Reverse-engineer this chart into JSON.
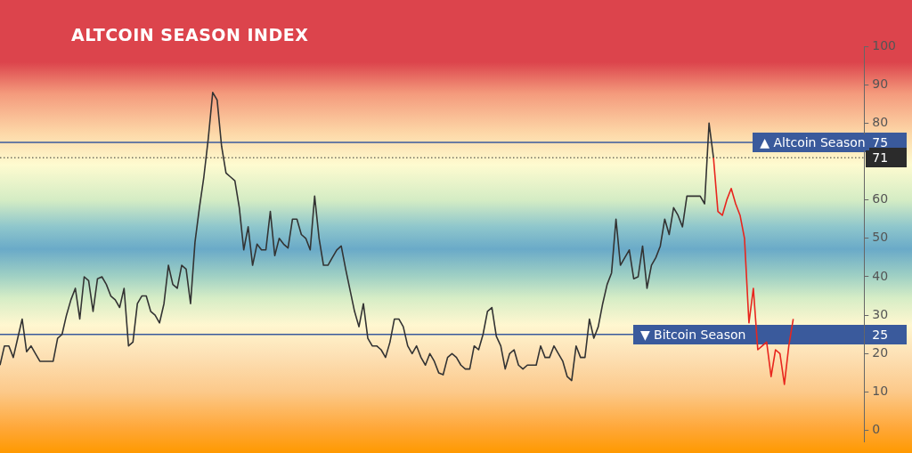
{
  "chart_data": {
    "type": "line",
    "title": "ALTCOIN SEASON INDEX",
    "categories": [
      null,
      null,
      null,
      null,
      null,
      null,
      null,
      null,
      null,
      null,
      null,
      null,
      null,
      null,
      null,
      null,
      null,
      null,
      null,
      null,
      null,
      null,
      null,
      null,
      null,
      null,
      null,
      null,
      null,
      null,
      null,
      null,
      null,
      null,
      null,
      null,
      null,
      null,
      null,
      null,
      null,
      null,
      null,
      null,
      null,
      null,
      null,
      null,
      null,
      null,
      null,
      null,
      null,
      null,
      null,
      null,
      null,
      null,
      null,
      null,
      null,
      null,
      null,
      null,
      null,
      null,
      null,
      null,
      null,
      null,
      null,
      null,
      null,
      null,
      null,
      null,
      null,
      null,
      null,
      null,
      null,
      null,
      null,
      null,
      null,
      null,
      null,
      null,
      null,
      null,
      null,
      null,
      null,
      null,
      null,
      null,
      null,
      null,
      null,
      null,
      null,
      null,
      null,
      null,
      null,
      null,
      null,
      null,
      null,
      null,
      null,
      null,
      null,
      null,
      null,
      null,
      null,
      null,
      null,
      null,
      null,
      null,
      null,
      null,
      null,
      null,
      null,
      null,
      null,
      null,
      null,
      null,
      null,
      null,
      null,
      null,
      null,
      null,
      null,
      null,
      null,
      null,
      null,
      null,
      null,
      null,
      null,
      null,
      null,
      null,
      null,
      null,
      null,
      null,
      null,
      null,
      null,
      null,
      null,
      null,
      null,
      null,
      null,
      null,
      null,
      null,
      null,
      null,
      null,
      null,
      null,
      null,
      null,
      null,
      null,
      null,
      null,
      null,
      null,
      null,
      null,
      null,
      null,
      null,
      null,
      null,
      null,
      null,
      null,
      null,
      null,
      null,
      null,
      null,
      null,
      null
    ],
    "ylim": [
      -3,
      100
    ],
    "yticks": [
      0,
      10,
      20,
      30,
      40,
      50,
      60,
      80,
      90,
      100
    ],
    "tick_labels": "y",
    "grid": false,
    "legend": false,
    "marker": "none",
    "line_style": "solid",
    "series": [
      {
        "color": "#333333",
        "values": [
          17,
          22,
          22,
          19,
          24,
          29,
          20.5,
          22,
          20,
          18,
          18,
          18,
          18,
          24,
          25,
          30,
          34,
          37,
          29,
          40,
          39,
          31,
          39.5,
          40,
          38,
          35,
          34,
          32,
          37,
          22,
          23,
          33,
          35,
          35,
          31,
          30,
          28,
          33,
          43,
          38,
          37,
          43,
          42,
          33,
          49,
          58,
          66,
          76,
          88,
          86,
          74,
          67,
          66,
          65,
          58,
          47,
          53,
          43,
          48.5,
          47,
          47,
          57,
          45.5,
          50,
          48.5,
          47.5,
          55,
          55,
          51,
          50,
          47,
          61,
          50,
          43,
          43,
          45,
          47,
          48,
          42,
          36.5,
          31,
          27,
          33,
          24,
          22,
          22,
          21,
          19,
          23,
          29,
          29,
          27,
          22,
          20,
          22,
          19,
          17,
          20,
          18,
          15,
          14.5,
          19,
          20,
          19,
          17,
          16,
          16,
          22,
          21,
          25,
          31,
          32,
          24.5,
          22,
          16,
          20,
          21,
          17,
          16,
          17,
          17,
          17,
          22,
          19,
          19,
          22,
          20,
          18,
          14,
          13,
          22,
          19,
          19,
          29,
          24,
          27,
          33,
          38,
          41,
          55,
          43,
          45,
          47,
          39.5,
          40,
          48,
          37,
          43,
          45,
          48,
          55,
          51,
          58,
          56,
          53,
          61,
          61,
          61,
          61,
          59,
          80,
          71,
          null,
          null,
          null,
          null,
          null,
          null,
          null,
          null,
          null,
          null,
          null,
          null,
          null,
          null,
          null,
          null,
          null,
          null,
          null,
          null,
          null,
          null,
          null,
          null,
          null,
          null,
          null,
          null,
          null,
          null,
          null,
          null,
          null,
          null
        ]
      },
      {
        "color": "#e8261e",
        "values": [
          null,
          null,
          null,
          null,
          null,
          null,
          null,
          null,
          null,
          null,
          null,
          null,
          null,
          null,
          null,
          null,
          null,
          null,
          null,
          null,
          null,
          null,
          null,
          null,
          null,
          null,
          null,
          null,
          null,
          null,
          null,
          null,
          null,
          null,
          null,
          null,
          null,
          null,
          null,
          null,
          null,
          null,
          null,
          null,
          null,
          null,
          null,
          null,
          null,
          null,
          null,
          null,
          null,
          null,
          null,
          null,
          null,
          null,
          null,
          null,
          null,
          null,
          null,
          null,
          null,
          null,
          null,
          null,
          null,
          null,
          null,
          null,
          null,
          null,
          null,
          null,
          null,
          null,
          null,
          null,
          null,
          null,
          null,
          null,
          null,
          null,
          null,
          null,
          null,
          null,
          null,
          null,
          null,
          null,
          null,
          null,
          null,
          null,
          null,
          null,
          null,
          null,
          null,
          null,
          null,
          null,
          null,
          null,
          null,
          null,
          null,
          null,
          null,
          null,
          null,
          null,
          null,
          null,
          null,
          null,
          null,
          null,
          null,
          null,
          null,
          null,
          null,
          null,
          null,
          null,
          null,
          null,
          null,
          null,
          null,
          null,
          null,
          null,
          null,
          null,
          null,
          null,
          null,
          null,
          null,
          null,
          null,
          null,
          null,
          null,
          null,
          null,
          null,
          null,
          null,
          null,
          null,
          null,
          null,
          null,
          null,
          71,
          57,
          56,
          60,
          63,
          59,
          56,
          50,
          28,
          37,
          21,
          22,
          23,
          14,
          21,
          20,
          12,
          22,
          29,
          null,
          null,
          null,
          null,
          null,
          null,
          null,
          null,
          null,
          null,
          null,
          null,
          null,
          null,
          null,
          null
        ]
      }
    ],
    "annotations": [
      "75",
      "25",
      "71"
    ],
    "ref_lines": [
      {
        "axis": "y",
        "value": 75,
        "label": "▲ Altcoin Season",
        "color": "#3a5a9c",
        "line_style": "solid"
      },
      {
        "axis": "y",
        "value": 25,
        "label": "▼ Bitcoin Season",
        "color": "#3a5a9c",
        "line_style": "solid"
      },
      {
        "axis": "y",
        "value": 71,
        "label": null,
        "color": "#333333",
        "line_style": "dotted"
      }
    ]
  }
}
